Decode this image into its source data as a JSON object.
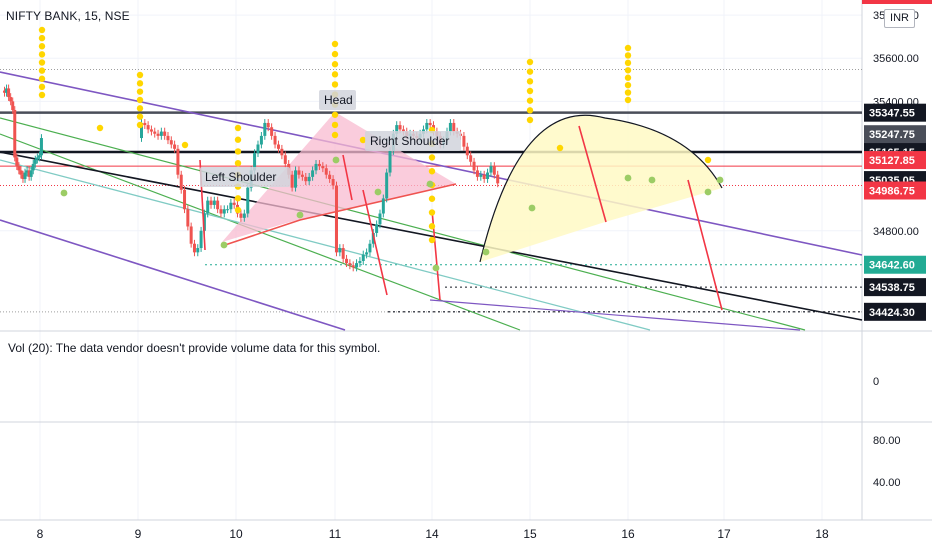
{
  "header": {
    "symbol_title": "NIFTY BANK, 15, NSE",
    "currency": "INR"
  },
  "volume_pane": {
    "note": "Vol (20): The data vendor doesn't provide volume data for this symbol.",
    "axis_value": "0"
  },
  "oscillator_pane": {
    "ticks": [
      "80.00",
      "40.00"
    ]
  },
  "colors": {
    "accent_red": "#f23645",
    "dark_label": "#131722",
    "grey_label": "#4a4e59",
    "green_label": "#22ab94",
    "purple_line": "#7e57c2",
    "green_line": "#4caf50",
    "teal_line": "#80cbc4",
    "candle_up": "#26a69a",
    "candle_down": "#ef5350",
    "signal_yellow": "#ffd600",
    "signal_green": "#9ccc65",
    "pattern_pink": "#f8bbd0",
    "pattern_yellow": "#fff9c4"
  },
  "chart_data": {
    "type": "candlestick",
    "title": "NIFTY BANK, 15, NSE",
    "x_ticks": [
      "8",
      "9",
      "10",
      "11",
      "14",
      "15",
      "16",
      "17",
      "18"
    ],
    "y_ticks": [
      35800.0,
      35600.0,
      35400.0,
      34800.0
    ],
    "ylim": [
      34340,
      35870
    ],
    "price_labels": [
      {
        "value": 35347.55,
        "text": "35347.55",
        "style": "dark"
      },
      {
        "value": 35247.75,
        "text": "35247.75",
        "style": "grey"
      },
      {
        "value": 35165.15,
        "text": "35165.15",
        "style": "dark"
      },
      {
        "value": 35127.85,
        "text": "35127.85",
        "style": "red"
      },
      {
        "value": 35035.05,
        "text": "35035.05",
        "style": "dark"
      },
      {
        "value": 34986.75,
        "text": "34986.75",
        "style": "red"
      },
      {
        "value": 34642.6,
        "text": "34642.60",
        "style": "green"
      },
      {
        "value": 34538.75,
        "text": "34538.75",
        "style": "dark"
      },
      {
        "value": 34424.3,
        "text": "34424.30",
        "style": "dark"
      }
    ],
    "annotations": [
      "Head",
      "Left Shoulder",
      "Right Shoulder"
    ],
    "series": [
      {
        "name": "NIFTY BANK",
        "close": [
          35440,
          35460,
          35420,
          35400,
          35360,
          35140,
          35100,
          35080,
          35060,
          35040,
          35070,
          35080,
          35050,
          35080,
          35110,
          35130,
          35140,
          35150,
          35230,
          35300,
          35290,
          35270,
          35260,
          35250,
          35240,
          35260,
          35240,
          35220,
          35200,
          35180,
          35060,
          34990,
          34900,
          34820,
          34740,
          34700,
          34720,
          34800,
          34880,
          34940,
          34920,
          34940,
          34900,
          34880,
          34900,
          34900,
          34930,
          34920,
          34880,
          34860,
          34880,
          35000,
          35080,
          35160,
          35200,
          35240,
          35300,
          35280,
          35240,
          35200,
          35180,
          35150,
          35110,
          35060,
          35000,
          35080,
          35060,
          35050,
          35030,
          35050,
          35080,
          35110,
          35100,
          35090,
          35060,
          35040,
          35010,
          34700,
          34720,
          34670,
          34650,
          34640,
          34630,
          34650,
          34660,
          34690,
          34700,
          34740,
          34790,
          34830,
          34880,
          34950,
          35070,
          35170,
          35250,
          35290,
          35270,
          35260,
          35240,
          35250,
          35240,
          35230,
          35250,
          35270,
          35300,
          35290,
          35260,
          35240,
          35200,
          35220,
          35260,
          35300,
          35260,
          35250,
          35240,
          35190,
          35150,
          35120,
          35080,
          35050,
          35060,
          35040,
          35070,
          35100,
          35060,
          35020
        ]
      }
    ]
  }
}
